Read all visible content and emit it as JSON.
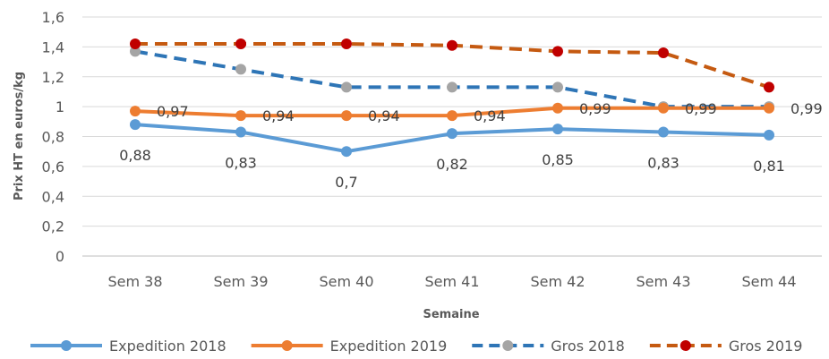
{
  "chart_data": {
    "type": "line",
    "categories": [
      "Sem 38",
      "Sem 39",
      "Sem 40",
      "Sem 41",
      "Sem 42",
      "Sem 43",
      "Sem 44"
    ],
    "xlabel": "Semaine",
    "ylabel": "Prix HT en euros/kg",
    "ylim": [
      0,
      1.6
    ],
    "yticks": [
      "0",
      "0,2",
      "0,4",
      "0,6",
      "0,8",
      "1",
      "1,2",
      "1,4",
      "1,6"
    ],
    "grid": true,
    "legend_position": "bottom",
    "series": [
      {
        "name": "Expedition 2018",
        "values": [
          0.88,
          0.83,
          0.7,
          0.82,
          0.85,
          0.83,
          0.81
        ],
        "labels": [
          "0,88",
          "0,83",
          "0,7",
          "0,82",
          "0,85",
          "0,83",
          "0,81"
        ],
        "color": "#5B9BD5",
        "style": "solid"
      },
      {
        "name": "Expedition 2019",
        "values": [
          0.97,
          0.94,
          0.94,
          0.94,
          0.99,
          0.99,
          0.99
        ],
        "labels": [
          "0,97",
          "0,94",
          "0,94",
          "0,94",
          "0,99",
          "0,99",
          "0,99"
        ],
        "color": "#ED7D31",
        "style": "solid"
      },
      {
        "name": "Gros 2018",
        "values": [
          1.37,
          1.25,
          1.13,
          1.13,
          1.13,
          1.0,
          1.0
        ],
        "color": "#2E75B6",
        "marker_color": "#A5A5A5",
        "style": "dashed"
      },
      {
        "name": "Gros 2019",
        "values": [
          1.42,
          1.42,
          1.42,
          1.41,
          1.37,
          1.36,
          1.13
        ],
        "color": "#C55A11",
        "marker_color": "#C00000",
        "style": "dashed"
      }
    ]
  }
}
